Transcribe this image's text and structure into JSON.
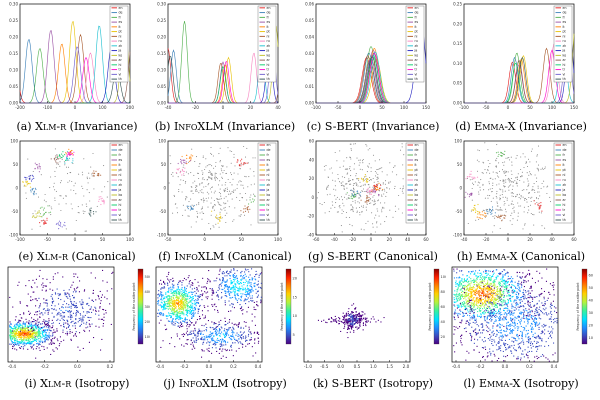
{
  "figure": {
    "rows": [
      {
        "name": "invariance",
        "captions": [
          {
            "pre": "(a) ",
            "model": "Xlm-r",
            "post": " (Invariance)"
          },
          {
            "pre": "(b) ",
            "model": "InfoXLM",
            "post": " (Invariance)"
          },
          {
            "pre": "(c) ",
            "model": "S-BERT",
            "post": " (Invariance)"
          },
          {
            "pre": "(d) ",
            "model": "Emma-X",
            "post": " (Invariance)"
          }
        ]
      },
      {
        "name": "canonical",
        "captions": [
          {
            "pre": "(e) ",
            "model": "Xlm-r",
            "post": " (Canonical)"
          },
          {
            "pre": "(f) ",
            "model": "InfoXLM",
            "post": " (Canonical)"
          },
          {
            "pre": "(g) ",
            "model": "S-BERT",
            "post": " (Canonical)"
          },
          {
            "pre": "(h) ",
            "model": "Emma-X",
            "post": " (Canonical)"
          }
        ]
      },
      {
        "name": "isotropy",
        "captions": [
          {
            "pre": "(i) ",
            "model": "Xlm-r",
            "post": " (Isotropy)"
          },
          {
            "pre": "(j) ",
            "model": "InfoXLM",
            "post": " (Isotropy)"
          },
          {
            "pre": "(k) ",
            "model": "S-BERT",
            "post": " (Isotropy)"
          },
          {
            "pre": "(l) ",
            "model": "Emma-X",
            "post": " (Isotropy)"
          }
        ]
      }
    ]
  },
  "invariance_panels": [
    {
      "xticks": [
        "-200",
        "-100",
        "0",
        "100",
        "200"
      ],
      "yticks": [
        "0.30",
        "0.25",
        "0.20",
        "0.15",
        "0.10",
        "0.05",
        "0.00"
      ]
    },
    {
      "xticks": [
        "-40",
        "-20",
        "0",
        "20",
        "40"
      ],
      "yticks": [
        "0.30",
        "0.25",
        "0.20",
        "0.15",
        "0.10",
        "0.05",
        "0.00"
      ]
    },
    {
      "xticks": [
        "-100",
        "-50",
        "0",
        "50",
        "100",
        "150"
      ],
      "yticks": [
        "0.06",
        "0.05",
        "0.04",
        "0.03",
        "0.02",
        "0.01",
        "0.00"
      ]
    },
    {
      "xticks": [
        "-100",
        "-50",
        "0",
        "50",
        "100",
        "150"
      ],
      "yticks": [
        "0.25",
        "0.20",
        "0.15",
        "0.10",
        "0.05",
        "0.00"
      ]
    }
  ],
  "canonical_panels": [
    {
      "xticks": [
        "-100",
        "-50",
        "0",
        "50",
        "100"
      ],
      "yticks": [
        "100",
        "50",
        "0",
        "-50",
        "-100"
      ]
    },
    {
      "xticks": [
        "-50",
        "0",
        "50",
        "100"
      ],
      "yticks": [
        "100",
        "50",
        "0",
        "-50",
        "-100"
      ]
    },
    {
      "xticks": [
        "-60",
        "-40",
        "-20",
        "0",
        "20",
        "40",
        "60"
      ],
      "yticks": [
        "60",
        "40",
        "20",
        "0",
        "-20",
        "-40"
      ]
    },
    {
      "xticks": [
        "-40",
        "-20",
        "0",
        "20",
        "40",
        "60"
      ],
      "yticks": [
        "100",
        "50",
        "0",
        "-50",
        "-100"
      ]
    }
  ],
  "isotropy_panels": [
    {
      "xticks": [
        "-0.4",
        "-0.2",
        "0.0",
        "0.2"
      ],
      "ylabel": "Frequency of the scatter point",
      "cbar": [
        "500",
        "400",
        "300",
        "200",
        "100"
      ]
    },
    {
      "xticks": [
        "-0.4",
        "-0.2",
        "0.0",
        "0.2",
        "0.4"
      ],
      "ylabel": "Frequency of the scatter point",
      "cbar": [
        "20",
        "15",
        "10",
        "5"
      ]
    },
    {
      "xticks": [
        "-1.0",
        "-0.5",
        "0.0",
        "0.5",
        "1.0",
        "1.5",
        "2.0"
      ],
      "ylabel": "Frequency of the scatter point",
      "cbar": [
        "100",
        "80",
        "60",
        "40",
        "20"
      ]
    },
    {
      "xticks": [
        "-0.4",
        "-0.2",
        "0.0",
        "0.2",
        "0.4"
      ],
      "ylabel": "Frequency of the scatter point",
      "cbar": [
        "60",
        "50",
        "40",
        "30",
        "20",
        "10"
      ]
    }
  ],
  "legend_languages": [
    "en",
    "de",
    "fr",
    "es",
    "it",
    "pt",
    "nl",
    "ru",
    "zh",
    "ja",
    "ko",
    "ar",
    "hi",
    "tr",
    "vi",
    "th"
  ],
  "series_colors": [
    "#e41a1c",
    "#377eb8",
    "#4daf4a",
    "#984ea3",
    "#ff7f00",
    "#e6c000",
    "#a65628",
    "#f781bf",
    "#17becf",
    "#1f1fbf",
    "#bcbd22",
    "#8c564b",
    "#00cc66",
    "#ff00cc",
    "#6a5acd",
    "#2f4f4f"
  ],
  "colormap": [
    "#4b0082",
    "#3b4cc0",
    "#1e90ff",
    "#00e0ff",
    "#36f0a0",
    "#b6f23c",
    "#ffd000",
    "#ff7f00",
    "#ff2000",
    "#8b0000"
  ]
}
